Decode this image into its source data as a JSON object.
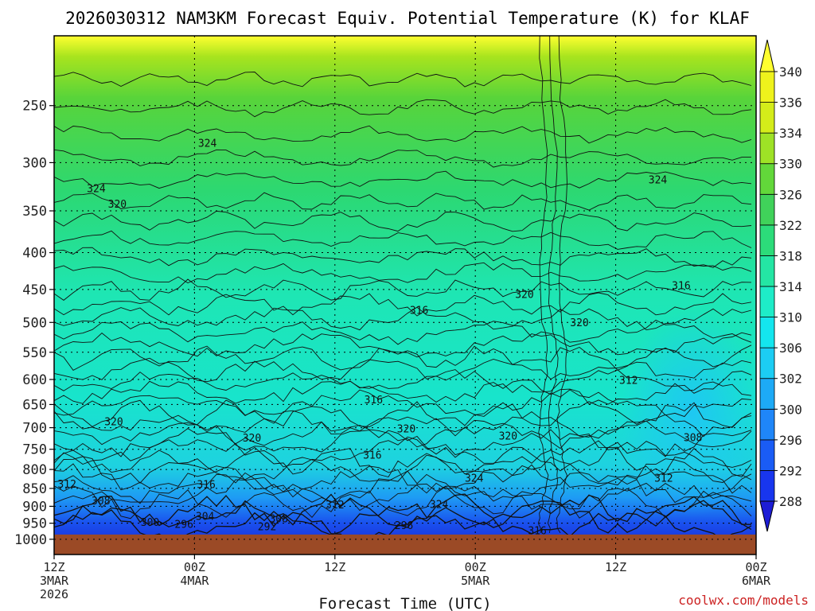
{
  "chart_data": {
    "type": "heatmap",
    "title": "2026030312 NAM3KM Forecast Equiv. Potential Temperature (K) for KLAF",
    "xlabel": "Forecast Time (UTC)",
    "ylabel": "",
    "x_ticks": [
      {
        "hours": 0,
        "lines": [
          "12Z",
          "3MAR",
          "2026"
        ]
      },
      {
        "hours": 12,
        "lines": [
          "00Z",
          "4MAR"
        ]
      },
      {
        "hours": 24,
        "lines": [
          "12Z"
        ]
      },
      {
        "hours": 36,
        "lines": [
          "00Z",
          "5MAR"
        ]
      },
      {
        "hours": 48,
        "lines": [
          "12Z"
        ]
      },
      {
        "hours": 60,
        "lines": [
          "00Z",
          "6MAR"
        ]
      }
    ],
    "xlim": [
      0,
      60
    ],
    "y_ticks": [
      250,
      300,
      350,
      400,
      450,
      500,
      550,
      600,
      650,
      700,
      750,
      800,
      850,
      900,
      950,
      1000
    ],
    "ylim": [
      1050,
      200
    ],
    "ground_pressure": 985,
    "colorbar": {
      "levels": [
        288,
        292,
        296,
        300,
        302,
        306,
        310,
        314,
        318,
        322,
        326,
        330,
        334,
        336,
        340
      ],
      "colors": [
        "#1d1dd6",
        "#1836ee",
        "#1a5cf5",
        "#1f86f8",
        "#1daaf6",
        "#1ccdf4",
        "#14e6ee",
        "#1eecc8",
        "#24e6a4",
        "#2cdc7a",
        "#40d25a",
        "#62d83a",
        "#9ee226",
        "#d4ec1a",
        "#eef21c",
        "#ffff30"
      ]
    },
    "contour_labels": [
      {
        "value": "324",
        "hours": 13.1,
        "p": 283
      },
      {
        "value": "324",
        "hours": 3.6,
        "p": 327
      },
      {
        "value": "320",
        "hours": 5.4,
        "p": 344
      },
      {
        "value": "324",
        "hours": 51.6,
        "p": 318
      },
      {
        "value": "320",
        "hours": 40.2,
        "p": 459
      },
      {
        "value": "316",
        "hours": 31.2,
        "p": 483
      },
      {
        "value": "316",
        "hours": 53.6,
        "p": 446
      },
      {
        "value": "320",
        "hours": 44.9,
        "p": 502
      },
      {
        "value": "312",
        "hours": 49.1,
        "p": 604
      },
      {
        "value": "316",
        "hours": 27.3,
        "p": 643
      },
      {
        "value": "320",
        "hours": 5.1,
        "p": 689
      },
      {
        "value": "320",
        "hours": 30.1,
        "p": 705
      },
      {
        "value": "320",
        "hours": 38.8,
        "p": 722
      },
      {
        "value": "320",
        "hours": 16.9,
        "p": 726
      },
      {
        "value": "316",
        "hours": 27.2,
        "p": 767
      },
      {
        "value": "308",
        "hours": 54.6,
        "p": 725
      },
      {
        "value": "324",
        "hours": 35.9,
        "p": 826
      },
      {
        "value": "312",
        "hours": 52.1,
        "p": 826
      },
      {
        "value": "316",
        "hours": 13.0,
        "p": 843
      },
      {
        "value": "312",
        "hours": 1.1,
        "p": 842
      },
      {
        "value": "308",
        "hours": 4.0,
        "p": 888
      },
      {
        "value": "312",
        "hours": 24.0,
        "p": 899
      },
      {
        "value": "324",
        "hours": 32.9,
        "p": 898
      },
      {
        "value": "304",
        "hours": 12.9,
        "p": 933
      },
      {
        "value": "308",
        "hours": 19.2,
        "p": 940
      },
      {
        "value": "300",
        "hours": 8.2,
        "p": 951
      },
      {
        "value": "296",
        "hours": 11.1,
        "p": 957
      },
      {
        "value": "292",
        "hours": 18.2,
        "p": 964
      },
      {
        "value": "296",
        "hours": 29.9,
        "p": 961
      },
      {
        "value": "316",
        "hours": 41.3,
        "p": 976
      }
    ]
  },
  "credit": "coolwx.com/models"
}
